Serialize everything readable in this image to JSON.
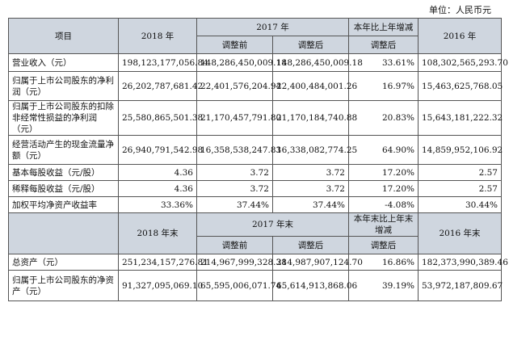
{
  "unit_label": "单位：人民币元",
  "header1": {
    "item": "项目",
    "y2018": "2018 年",
    "y2017": "2017 年",
    "change": "本年比上年增减",
    "y2016": "2016 年",
    "before": "调整前",
    "after": "调整后",
    "change_sub": "调整后"
  },
  "rows1": [
    {
      "label": "营业收入（元）",
      "v2018": "198,123,177,056.84",
      "before": "148,286,450,009.18",
      "after": "148,286,450,009.18",
      "change": "33.61%",
      "v2016": "108,302,565,293.70"
    },
    {
      "label": "归属于上市公司股东的净利润（元）",
      "v2018": "26,202,787,681.42",
      "before": "22,401,576,204.94",
      "after": "22,400,484,001.26",
      "change": "16.97%",
      "v2016": "15,463,625,768.05"
    },
    {
      "label": "归属于上市公司股东的扣除非经常性损益的净利润（元）",
      "v2018": "25,580,865,501.38",
      "before": "21,170,457,791.80",
      "after": "21,170,184,740.88",
      "change": "20.83%",
      "v2016": "15,643,181,222.32"
    },
    {
      "label": "经营活动产生的现金流量净额（元）",
      "v2018": "26,940,791,542.98",
      "before": "16,358,538,247.83",
      "after": "16,338,082,774.25",
      "change": "64.90%",
      "v2016": "14,859,952,106.92"
    },
    {
      "label": "基本每股收益（元/股）",
      "v2018": "4.36",
      "before": "3.72",
      "after": "3.72",
      "change": "17.20%",
      "v2016": "2.57"
    },
    {
      "label": "稀释每股收益（元/股）",
      "v2018": "4.36",
      "before": "3.72",
      "after": "3.72",
      "change": "17.20%",
      "v2016": "2.57"
    },
    {
      "label": "加权平均净资产收益率",
      "v2018": "33.36%",
      "before": "37.44%",
      "after": "37.44%",
      "change": "-4.08%",
      "v2016": "30.44%"
    }
  ],
  "header2": {
    "y2018": "2018 年末",
    "y2017": "2017 年末",
    "change": "本年末比上年末增减",
    "y2016": "2016 年末",
    "before": "调整前",
    "after": "调整后",
    "change_sub": "调整后"
  },
  "rows2": [
    {
      "label": "总资产（元）",
      "v2018": "251,234,157,276.81",
      "before": "214,967,999,328.38",
      "after": "214,987,907,124.70",
      "change": "16.86%",
      "v2016": "182,373,990,389.46"
    },
    {
      "label": "归属于上市公司股东的净资产（元）",
      "v2018": "91,327,095,069.10",
      "before": "65,595,006,071.74",
      "after": "65,614,913,868.06",
      "change": "39.19%",
      "v2016": "53,972,187,809.67"
    }
  ]
}
